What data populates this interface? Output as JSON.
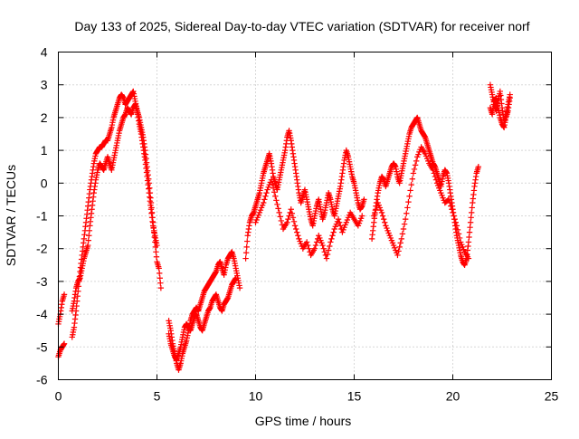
{
  "chart_data": {
    "type": "scatter",
    "title": "Day 133 of 2025, Sidereal Day-to-day VTEC variation (SDTVAR) for receiver norf",
    "xlabel": "GPS time / hours",
    "ylabel": "SDTVAR / TECUs",
    "xlim": [
      0,
      25
    ],
    "ylim": [
      -6,
      4
    ],
    "x_ticks": [
      0,
      5,
      10,
      15,
      20,
      25
    ],
    "y_ticks": [
      -6,
      -5,
      -4,
      -3,
      -2,
      -1,
      0,
      1,
      2,
      3,
      4
    ],
    "x_tick_labels": [
      "0",
      "5",
      "10",
      "15",
      "20",
      "25"
    ],
    "y_tick_labels": [
      "-6",
      "-5",
      "-4",
      "-3",
      "-2",
      "-1",
      "0",
      "1",
      "2",
      "3",
      "4"
    ],
    "grid": true,
    "marker": "+",
    "series": [
      {
        "name": "SDTVAR",
        "color": "#ff0000",
        "segments": [
          {
            "x": [
              0.0,
              0.1,
              0.2,
              0.3
            ],
            "y": [
              -5.3,
              -5.1,
              -5.0,
              -4.9
            ]
          },
          {
            "x": [
              0.0,
              0.1,
              0.2,
              0.3
            ],
            "y": [
              -4.3,
              -4.0,
              -3.6,
              -3.4
            ]
          },
          {
            "x": [
              0.7,
              0.8,
              0.9,
              1.0,
              1.1,
              1.2,
              1.3,
              1.4,
              1.5,
              1.6,
              1.7,
              1.8,
              1.9,
              2.0,
              2.1,
              2.2,
              2.3,
              2.4,
              2.5,
              2.6,
              2.7,
              2.8,
              2.9,
              3.0,
              3.1,
              3.2,
              3.3,
              3.4,
              3.5,
              3.6,
              3.7,
              3.8,
              3.9,
              4.0,
              4.1,
              4.2,
              4.3,
              4.4,
              4.5,
              4.6,
              4.7,
              4.8,
              4.9,
              5.0,
              5.1,
              5.2
            ],
            "y": [
              -4.7,
              -4.4,
              -3.9,
              -3.3,
              -2.7,
              -2.2,
              -1.7,
              -1.2,
              -0.7,
              -0.2,
              0.2,
              0.6,
              0.9,
              1.0,
              1.1,
              1.1,
              1.2,
              1.3,
              1.3,
              1.5,
              1.7,
              2.0,
              2.2,
              2.4,
              2.6,
              2.7,
              2.6,
              2.4,
              2.5,
              2.6,
              2.7,
              2.8,
              2.5,
              2.2,
              2.0,
              1.7,
              1.4,
              1.0,
              0.5,
              0.0,
              -0.6,
              -1.2,
              -1.8,
              -2.4,
              -2.6,
              -3.2
            ]
          },
          {
            "x": [
              0.7,
              0.8,
              0.9,
              1.0,
              1.1,
              1.2,
              1.3,
              1.4,
              1.5,
              1.6,
              1.7,
              1.8,
              1.9,
              2.0,
              2.1,
              2.2,
              2.3,
              2.4,
              2.5,
              2.6,
              2.7,
              2.8,
              2.9,
              3.0,
              3.1,
              3.2,
              3.3,
              3.4,
              3.5,
              3.6,
              3.7,
              3.8,
              3.9,
              4.0,
              4.1,
              4.2,
              4.3,
              4.4,
              4.5,
              4.6,
              4.7,
              4.8,
              4.9,
              5.0
            ],
            "y": [
              -3.9,
              -3.6,
              -3.2,
              -3.0,
              -2.9,
              -2.6,
              -2.3,
              -2.1,
              -1.9,
              -1.3,
              -0.8,
              -0.3,
              0.1,
              0.4,
              0.6,
              0.5,
              0.4,
              0.6,
              0.8,
              0.6,
              0.4,
              0.7,
              1.0,
              1.3,
              1.6,
              1.8,
              2.0,
              2.1,
              2.3,
              2.2,
              2.1,
              2.3,
              2.4,
              2.2,
              1.8,
              1.5,
              1.1,
              0.7,
              0.2,
              -0.3,
              -0.8,
              -1.3,
              -1.6,
              -1.9
            ]
          },
          {
            "x": [
              5.6,
              5.7,
              5.8,
              5.9,
              6.0,
              6.1,
              6.2,
              6.3,
              6.4,
              6.5,
              6.6,
              6.7,
              6.8,
              6.9,
              7.0,
              7.1,
              7.2,
              7.3,
              7.4,
              7.5,
              7.6,
              7.7,
              7.8,
              7.9,
              8.0,
              8.1,
              8.2,
              8.3,
              8.4,
              8.5,
              8.6,
              8.7,
              8.8,
              8.9,
              9.0,
              9.1,
              9.2
            ],
            "y": [
              -4.2,
              -4.5,
              -4.9,
              -5.2,
              -5.5,
              -5.7,
              -5.5,
              -5.2,
              -5.0,
              -4.8,
              -4.5,
              -4.2,
              -4.0,
              -3.9,
              -3.8,
              -3.9,
              -3.7,
              -3.5,
              -3.3,
              -3.2,
              -3.1,
              -3.0,
              -2.9,
              -2.8,
              -2.7,
              -2.5,
              -2.4,
              -2.6,
              -2.8,
              -2.5,
              -2.3,
              -2.2,
              -2.1,
              -2.3,
              -2.6,
              -2.9,
              -3.2
            ]
          },
          {
            "x": [
              5.6,
              5.7,
              5.8,
              5.9,
              6.0,
              6.1,
              6.2,
              6.3,
              6.4,
              6.5,
              6.6,
              6.7,
              6.8,
              6.9,
              7.0,
              7.1,
              7.2,
              7.3,
              7.4,
              7.5,
              7.6,
              7.7,
              7.8,
              7.9,
              8.0,
              8.1,
              8.2,
              8.3,
              8.4,
              8.5,
              8.6,
              8.7,
              8.8,
              8.9,
              9.0
            ],
            "y": [
              -4.6,
              -4.9,
              -5.1,
              -5.3,
              -5.4,
              -5.2,
              -5.0,
              -4.7,
              -4.4,
              -4.3,
              -4.4,
              -4.5,
              -4.3,
              -4.1,
              -4.0,
              -4.2,
              -4.4,
              -4.5,
              -4.3,
              -4.1,
              -3.9,
              -3.8,
              -3.6,
              -3.5,
              -3.4,
              -3.6,
              -3.8,
              -3.9,
              -3.7,
              -3.6,
              -3.5,
              -3.3,
              -3.1,
              -3.0,
              -2.9
            ]
          },
          {
            "x": [
              9.5,
              9.6,
              9.7,
              9.8,
              9.9,
              10.0,
              10.1,
              10.2,
              10.3,
              10.4,
              10.5,
              10.6,
              10.7,
              10.8,
              10.9,
              11.0,
              11.1,
              11.2,
              11.3,
              11.4,
              11.5,
              11.6,
              11.7,
              11.8,
              11.9,
              12.0,
              12.1,
              12.2,
              12.3,
              12.4,
              12.5,
              12.6,
              12.7,
              12.8,
              12.9,
              13.0,
              13.1,
              13.2,
              13.3,
              13.4,
              13.5,
              13.6,
              13.7,
              13.8,
              13.9,
              14.0,
              14.1,
              14.2,
              14.3,
              14.4,
              14.5,
              14.6,
              14.7,
              14.8,
              14.9,
              15.0,
              15.1,
              15.2,
              15.3,
              15.4,
              15.5
            ],
            "y": [
              -2.3,
              -1.6,
              -1.2,
              -1.0,
              -0.9,
              -0.7,
              -0.5,
              -0.3,
              0.0,
              0.3,
              0.5,
              0.7,
              0.9,
              0.6,
              0.2,
              0.0,
              -0.2,
              0.1,
              0.4,
              0.7,
              1.0,
              1.4,
              1.6,
              1.3,
              0.9,
              0.5,
              0.1,
              -0.3,
              -0.6,
              -0.4,
              -0.2,
              -0.5,
              -0.8,
              -1.1,
              -1.3,
              -1.0,
              -0.7,
              -0.5,
              -0.8,
              -1.1,
              -0.9,
              -0.6,
              -0.3,
              -0.5,
              -0.8,
              -1.0,
              -0.7,
              -0.4,
              -0.1,
              0.3,
              0.7,
              1.0,
              0.8,
              0.5,
              0.2,
              0.0,
              -0.3,
              -0.6,
              -0.8,
              -0.7,
              -0.5
            ]
          },
          {
            "x": [
              10.0,
              10.2,
              10.4,
              10.6,
              10.8,
              11.0,
              11.2,
              11.4,
              11.6,
              11.8,
              12.0,
              12.2,
              12.4,
              12.6,
              12.8,
              13.0,
              13.2,
              13.4,
              13.6,
              13.8,
              14.0,
              14.2,
              14.4,
              14.6,
              14.8,
              15.0,
              15.2,
              15.4
            ],
            "y": [
              -1.2,
              -0.9,
              -0.6,
              -0.2,
              0.1,
              -0.4,
              -0.9,
              -1.4,
              -1.2,
              -0.8,
              -1.3,
              -1.7,
              -2.0,
              -1.8,
              -2.2,
              -2.0,
              -1.6,
              -1.9,
              -2.3,
              -1.8,
              -1.4,
              -1.1,
              -1.5,
              -1.2,
              -0.9,
              -1.1,
              -1.3,
              -1.0
            ]
          },
          {
            "x": [
              15.9,
              16.0,
              16.1,
              16.2,
              16.3,
              16.4,
              16.5,
              16.6,
              16.7,
              16.8,
              16.9,
              17.0,
              17.1,
              17.2,
              17.3,
              17.4,
              17.5,
              17.6,
              17.7,
              17.8,
              17.9,
              18.0,
              18.1,
              18.2,
              18.3,
              18.4,
              18.5,
              18.6,
              18.7,
              18.8,
              18.9,
              19.0,
              19.1,
              19.2,
              19.3,
              19.4,
              19.5,
              19.6,
              19.7,
              19.8,
              19.9,
              20.0,
              20.1,
              20.2,
              20.3,
              20.4,
              20.5,
              20.6,
              20.7,
              20.8,
              20.9,
              21.0,
              21.1,
              21.2,
              21.3
            ],
            "y": [
              -1.7,
              -1.2,
              -0.7,
              -0.3,
              0.0,
              0.2,
              0.1,
              -0.1,
              0.1,
              0.3,
              0.5,
              0.6,
              0.5,
              0.2,
              0.0,
              0.3,
              0.6,
              0.9,
              1.2,
              1.5,
              1.7,
              1.8,
              1.9,
              2.0,
              1.8,
              1.6,
              1.5,
              1.4,
              1.2,
              1.0,
              0.8,
              0.6,
              0.5,
              0.3,
              0.1,
              -0.1,
              0.2,
              0.4,
              0.3,
              0.0,
              -0.4,
              -0.8,
              -1.2,
              -1.6,
              -1.9,
              -2.2,
              -2.4,
              -2.5,
              -2.3,
              -1.8,
              -1.2,
              -0.6,
              -0.1,
              0.3,
              0.5
            ]
          },
          {
            "x": [
              16.0,
              16.2,
              16.4,
              16.6,
              16.8,
              17.0,
              17.2,
              17.4,
              17.6,
              17.8,
              18.0,
              18.2,
              18.4,
              18.6,
              18.8,
              19.0,
              19.2,
              19.4,
              19.6,
              19.8,
              20.0,
              20.2,
              20.4,
              20.6,
              20.8
            ],
            "y": [
              -1.0,
              -0.6,
              -0.9,
              -1.3,
              -1.6,
              -1.9,
              -2.2,
              -1.7,
              -1.1,
              -0.4,
              0.3,
              0.8,
              1.1,
              0.9,
              0.6,
              0.4,
              0.0,
              -0.3,
              -0.6,
              -0.5,
              -0.9,
              -1.3,
              -1.8,
              -2.1,
              -2.3
            ]
          },
          {
            "x": [
              21.9,
              22.0,
              22.1,
              22.2,
              22.3,
              22.4,
              22.5,
              22.6,
              22.7,
              22.8,
              22.9
            ],
            "y": [
              3.0,
              2.7,
              2.4,
              2.2,
              2.5,
              2.8,
              2.3,
              1.9,
              2.1,
              2.4,
              2.7
            ]
          },
          {
            "x": [
              21.9,
              22.0,
              22.1,
              22.2,
              22.3,
              22.4,
              22.5,
              22.6,
              22.7,
              22.8,
              22.9
            ],
            "y": [
              2.3,
              2.1,
              2.5,
              2.6,
              2.3,
              2.0,
              1.8,
              1.7,
              2.0,
              2.2,
              2.6
            ]
          }
        ]
      }
    ]
  }
}
